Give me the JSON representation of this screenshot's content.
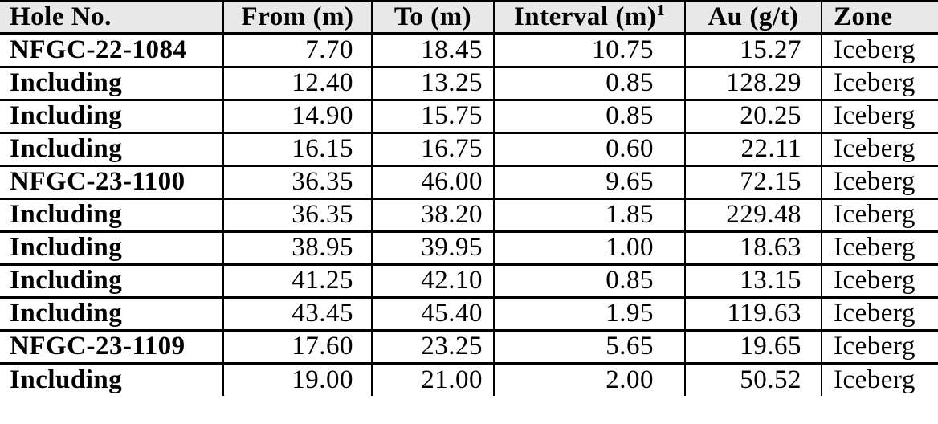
{
  "table": {
    "title": "drill-intercepts-table",
    "colors": {
      "header_bg": "#E8E8E8",
      "border": "#000000",
      "text": "#000000",
      "body_bg": "#FFFFFF"
    },
    "header": [
      {
        "key": "hole-no",
        "label": "Hole No.",
        "sup": ""
      },
      {
        "key": "from-m",
        "label": "From (m)",
        "sup": ""
      },
      {
        "key": "to-m",
        "label": "To (m)",
        "sup": ""
      },
      {
        "key": "interval-m",
        "label": "Interval (m)",
        "sup": "1"
      },
      {
        "key": "au-gt",
        "label": "Au (g/t)",
        "sup": ""
      },
      {
        "key": "zone",
        "label": "Zone",
        "sup": ""
      }
    ],
    "rows": [
      [
        "NFGC-22-1084",
        "7.70",
        "18.45",
        "10.75",
        "15.27",
        "Iceberg"
      ],
      [
        "Including",
        "12.40",
        "13.25",
        "0.85",
        "128.29",
        "Iceberg"
      ],
      [
        "Including",
        "14.90",
        "15.75",
        "0.85",
        "20.25",
        "Iceberg"
      ],
      [
        "Including",
        "16.15",
        "16.75",
        "0.60",
        "22.11",
        "Iceberg"
      ],
      [
        "NFGC-23-1100",
        "36.35",
        "46.00",
        "9.65",
        "72.15",
        "Iceberg"
      ],
      [
        "Including",
        "36.35",
        "38.20",
        "1.85",
        "229.48",
        "Iceberg"
      ],
      [
        "Including",
        "38.95",
        "39.95",
        "1.00",
        "18.63",
        "Iceberg"
      ],
      [
        "Including",
        "41.25",
        "42.10",
        "0.85",
        "13.15",
        "Iceberg"
      ],
      [
        "Including",
        "43.45",
        "45.40",
        "1.95",
        "119.63",
        "Iceberg"
      ],
      [
        "NFGC-23-1109",
        "17.60",
        "23.25",
        "5.65",
        "19.65",
        "Iceberg"
      ],
      [
        "Including",
        "19.00",
        "21.00",
        "2.00",
        "50.52",
        "Iceberg"
      ]
    ]
  }
}
